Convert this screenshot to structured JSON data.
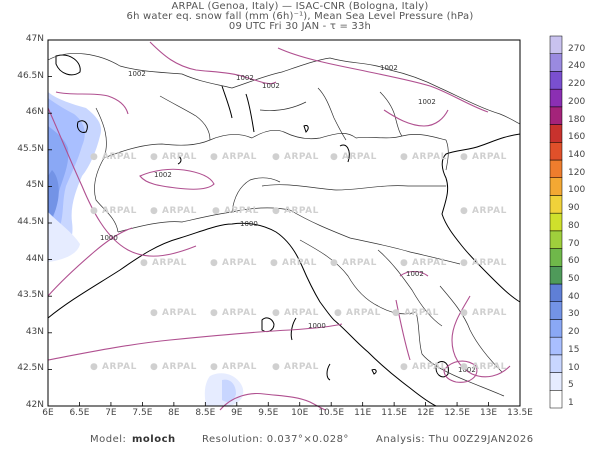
{
  "title": {
    "line1": "ARPAL (Genoa, Italy)  —  ISAC-CNR (Bologna, Italy)",
    "line2": "6h water eq. snow fall (mm (6h)⁻¹), Mean Sea Level Pressure (hPa)",
    "line3": "09 UTC Fri 30 JAN  -  τ = 33h"
  },
  "lat_labels": [
    "47N",
    "46.5N",
    "46N",
    "45.5N",
    "45N",
    "44.5N",
    "44N",
    "43.5N",
    "43N",
    "42.5N",
    "42N"
  ],
  "lon_labels": [
    "6E",
    "6.5E",
    "7E",
    "7.5E",
    "8E",
    "8.5E",
    "9E",
    "9.5E",
    "10E",
    "10.5E",
    "11E",
    "11.5E",
    "12E",
    "12.5E",
    "13E",
    "13.5E"
  ],
  "isobar_labels": [
    "1002",
    "1002",
    "1002",
    "1002",
    "1002",
    "1002",
    "1000",
    "1000",
    "1000",
    "1002",
    "1002"
  ],
  "watermark": "ARPAL",
  "colorbar": {
    "labels": [
      "1",
      "5",
      "10",
      "15",
      "20",
      "30",
      "40",
      "50",
      "60",
      "70",
      "80",
      "90",
      "100",
      "120",
      "140",
      "160",
      "180",
      "200",
      "220",
      "240",
      "270"
    ],
    "colors": [
      "#ffffff",
      "#e6ecff",
      "#c8d6ff",
      "#a9bfff",
      "#8aa8f5",
      "#7393e6",
      "#5f7fd6",
      "#4f9a5a",
      "#6fb84a",
      "#9fcf3c",
      "#cfe02c",
      "#f0d23a",
      "#f3a833",
      "#ee7d2d",
      "#e0502a",
      "#c8322d",
      "#a4237a",
      "#8b2fb3",
      "#7a4fd0",
      "#9a8ae0",
      "#c9c2ef"
    ]
  },
  "footer": {
    "model_label": "Model:",
    "model_value": "moloch",
    "resolution": "Resolution: 0.037°×0.028°",
    "analysis": "Analysis: Thu 00Z29JAN2026"
  }
}
